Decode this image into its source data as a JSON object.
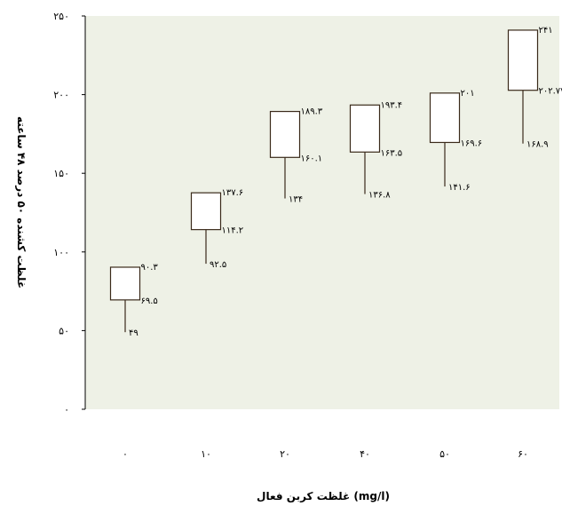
{
  "chart_data": {
    "type": "boxplot-highlow",
    "title": "",
    "xlabel": "غلظت کربن فعال (mg/l)",
    "ylabel": "غلظت کشنده ۵۰ درصد ۴۸ ساعته",
    "ylim": [
      0,
      250
    ],
    "y_ticks": [
      0,
      50,
      100,
      150,
      200,
      250
    ],
    "y_tick_labels": [
      "۰",
      "۵۰",
      "۱۰۰",
      "۱۵۰",
      "۲۰۰",
      "۲۵۰"
    ],
    "categories": [
      "۰",
      "۱۰",
      "۲۰",
      "۴۰",
      "۵۰",
      "۶۰"
    ],
    "grid": false,
    "plot_background": "#eef1e6",
    "box_fill": "#ffffff",
    "box_stroke": "#3a2a1a",
    "groups": [
      {
        "category": "۰",
        "high": 90.3,
        "mid": 69.5,
        "low": 49,
        "high_label": "۹۰.۳",
        "mid_label": "۶۹.۵",
        "low_label": "۴۹"
      },
      {
        "category": "۱۰",
        "high": 137.6,
        "mid": 114.2,
        "low": 92.5,
        "high_label": "۱۳۷.۶",
        "mid_label": "۱۱۴.۲",
        "low_label": "۹۲.۵"
      },
      {
        "category": "۲۰",
        "high": 189.3,
        "mid": 160.1,
        "low": 134,
        "high_label": "۱۸۹.۳",
        "mid_label": "۱۶۰.۱",
        "low_label": "۱۳۴"
      },
      {
        "category": "۴۰",
        "high": 193.4,
        "mid": 163.5,
        "low": 136.8,
        "high_label": "۱۹۳.۴",
        "mid_label": "۱۶۳.۵",
        "low_label": "۱۳۶.۸"
      },
      {
        "category": "۵۰",
        "high": 201,
        "mid": 169.6,
        "low": 141.6,
        "high_label": "۲۰۱",
        "mid_label": "۱۶۹.۶",
        "low_label": "۱۴۱.۶"
      },
      {
        "category": "۶۰",
        "high": 241,
        "mid": 202.77,
        "low": 168.9,
        "high_label": "۲۴۱",
        "mid_label": "۲۰۲.۷۷",
        "low_label": "۱۶۸.۹"
      }
    ]
  }
}
